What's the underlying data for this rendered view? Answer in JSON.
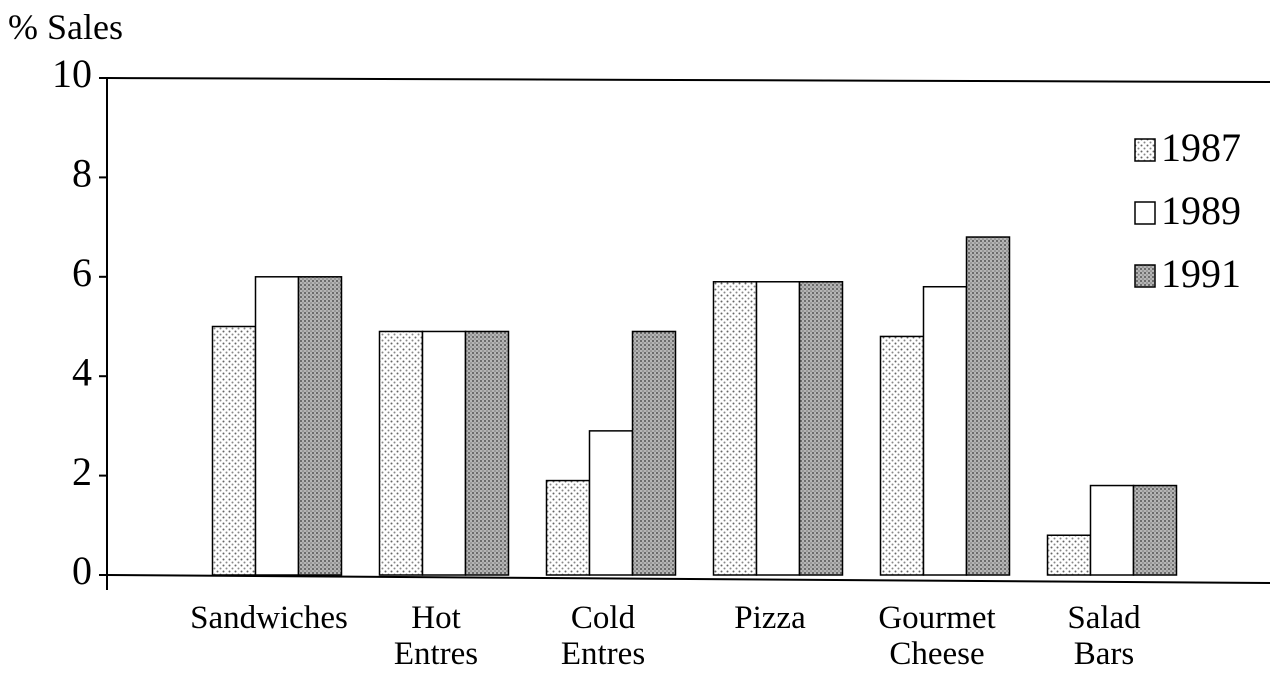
{
  "chart_data": {
    "type": "bar",
    "y_label": "% Sales",
    "categories": [
      "Sandwiches",
      "Hot Entres",
      "Cold Entres",
      "Pizza",
      "Gourmet Cheese",
      "Salad Bars"
    ],
    "series": [
      {
        "name": "1987",
        "color": "#dcdcdc",
        "values": [
          5,
          4.9,
          1.9,
          5.9,
          4.8,
          0.8
        ]
      },
      {
        "name": "1989",
        "color": "#ffffff",
        "values": [
          6,
          4.9,
          2.9,
          5.9,
          5.8,
          1.8
        ]
      },
      {
        "name": "1991",
        "color": "#a6a6a6",
        "values": [
          6,
          4.9,
          4.9,
          5.9,
          6.8,
          1.8
        ]
      }
    ],
    "ylim": [
      0,
      10
    ],
    "yticks": [
      0,
      2,
      4,
      6,
      8,
      10
    ],
    "legend": "top-right"
  }
}
